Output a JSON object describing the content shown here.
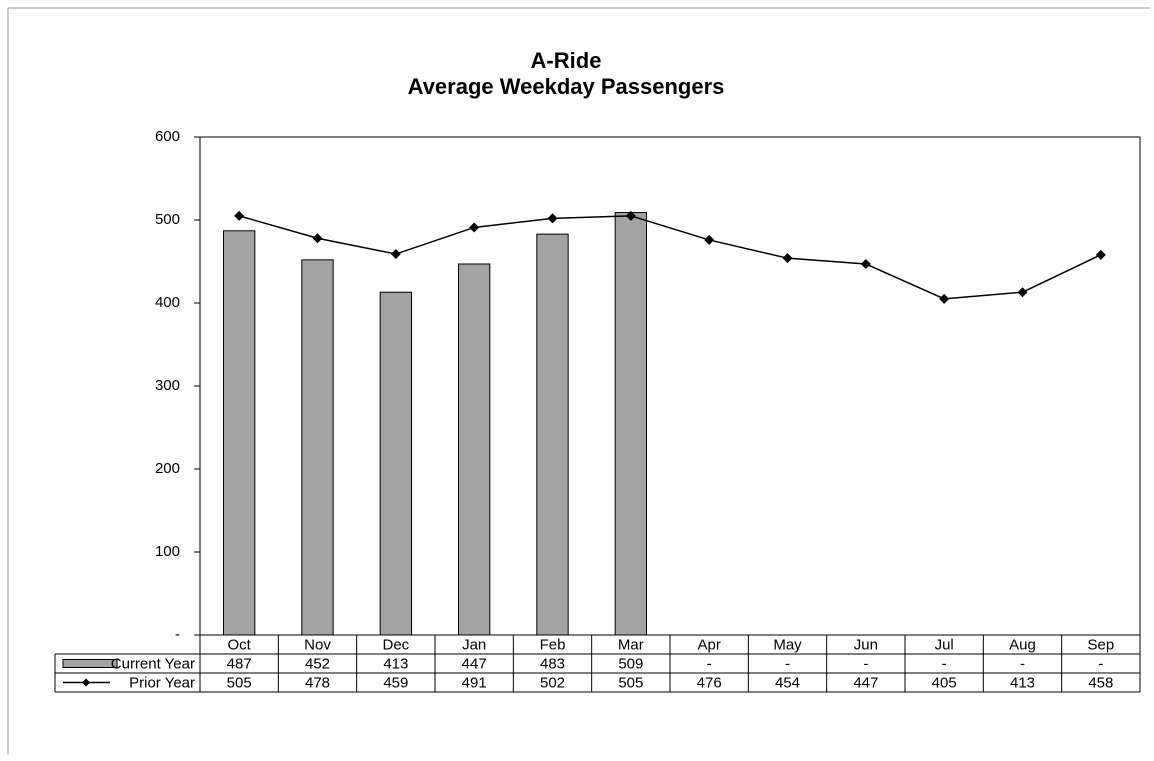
{
  "chart_data": {
    "type": "bar",
    "title": "A-Ride",
    "subtitle": "Average Weekday Passengers",
    "categories": [
      "Oct",
      "Nov",
      "Dec",
      "Jan",
      "Feb",
      "Mar",
      "Apr",
      "May",
      "Jun",
      "Jul",
      "Aug",
      "Sep"
    ],
    "series": [
      {
        "name": "Current Year",
        "type": "bar",
        "color": "#a3a3a3",
        "values": [
          487,
          452,
          413,
          447,
          483,
          509,
          null,
          null,
          null,
          null,
          null,
          null
        ],
        "value_labels": [
          "487",
          "452",
          "413",
          "447",
          "483",
          "509",
          "-",
          "-",
          "-",
          "-",
          "-",
          "-"
        ]
      },
      {
        "name": "Prior Year",
        "type": "line",
        "color": "#000000",
        "values": [
          505,
          478,
          459,
          491,
          502,
          505,
          476,
          454,
          447,
          405,
          413,
          458
        ]
      }
    ],
    "ylim": [
      0,
      600
    ],
    "yticks": [
      {
        "value": 0,
        "label": "-"
      },
      100,
      200,
      300,
      400,
      500,
      600
    ],
    "grid": false
  }
}
